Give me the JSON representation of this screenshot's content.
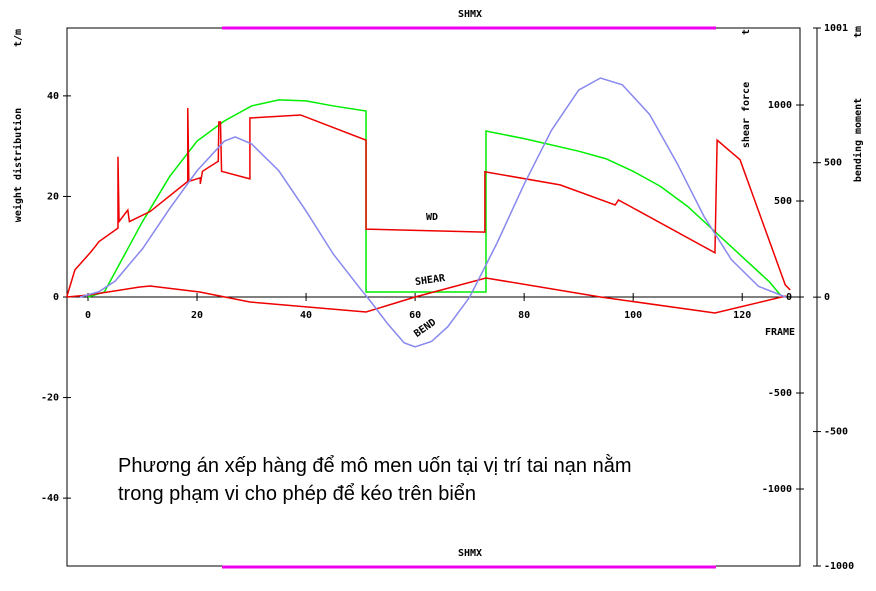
{
  "chart_data": {
    "type": "line",
    "top_label": "SHMX",
    "bottom_label": "SHMX",
    "x_label": "FRAME",
    "y_label": "weight distribution",
    "y_unit": "t/m",
    "y2_label": "shear force",
    "y2_unit": "t",
    "y3_label": "bending moment",
    "y3_unit": "tm",
    "caption": [
      "Phương án xếp hàng để mô men uốn tại vị trí tai nạn nằm",
      "trong phạm vi cho phép để kéo trên biển"
    ],
    "xlim": [
      -3.85,
      130.6
    ],
    "xticks": [
      0,
      20,
      40,
      60,
      80,
      100,
      120
    ],
    "ylim": [
      -53.5,
      53.5
    ],
    "yticks": [
      -40,
      -20,
      0,
      20,
      40
    ],
    "y2lim": [
      -1401,
      1401
    ],
    "y2ticks": [
      -1000,
      -500,
      0,
      500,
      1000
    ],
    "y3lim": [
      -1000,
      1001
    ],
    "y3ticks": [
      -1000,
      -500,
      0,
      500,
      1001
    ],
    "series": [
      {
        "color": "#00ee00",
        "axis": "y",
        "x": [
          0,
          3,
          5,
          10,
          15,
          20,
          25,
          30,
          35,
          40,
          45,
          51,
          51,
          73,
          73,
          80,
          90,
          95,
          100,
          105,
          110,
          115,
          120,
          125,
          127
        ],
        "values": [
          0,
          1,
          5,
          15,
          24,
          31,
          35,
          38,
          39.2,
          39,
          38,
          37,
          1,
          1,
          33,
          31.5,
          29,
          27.5,
          25,
          22,
          18,
          13,
          8,
          3,
          0.4
        ]
      },
      {
        "name": "WD",
        "color": "#ee0000",
        "axis": "y",
        "x": [
          -3.9,
          -2.4,
          0.4,
          1.3,
          2,
          5.5,
          5.5,
          5.7,
          7.3,
          7.6,
          11.4,
          18.3,
          18.3,
          18.5,
          20.6,
          20.6,
          21,
          23.9,
          24,
          24.3,
          24.5,
          29.7,
          29.7,
          39,
          51,
          51,
          72.8,
          72.8,
          86.6,
          96.7,
          97.3,
          115,
          115.4,
          119.6,
          127.9,
          128.8
        ],
        "values": [
          0,
          5.4,
          8.8,
          10,
          11,
          13.7,
          27.9,
          15,
          17.3,
          15,
          17,
          23,
          37.6,
          23,
          23.7,
          22.5,
          25,
          27,
          34.8,
          34.8,
          25,
          23.5,
          35.6,
          36.2,
          31.2,
          13.5,
          12.9,
          24.9,
          22.3,
          18.3,
          19.3,
          8.8,
          31.2,
          27.3,
          2.4,
          1.4
        ]
      },
      {
        "name": "SHEAR",
        "color": "#ee0000",
        "axis": "y2",
        "x": [
          -3.9,
          0,
          9.5,
          11.4,
          20.5,
          29.7,
          51,
          60,
          73,
          94,
          115,
          128
        ],
        "values": [
          0,
          10,
          52,
          57,
          26,
          -26,
          -78,
          0,
          99,
          0,
          -83,
          5
        ]
      },
      {
        "name": "BEND",
        "color": "#8888ee",
        "axis": "y3",
        "x": [
          -1.5,
          2,
          5,
          10,
          15,
          20,
          25,
          27,
          30,
          35,
          40,
          45,
          50,
          52,
          55,
          58,
          60,
          63,
          66,
          70,
          75,
          80,
          85,
          90,
          94,
          98,
          103,
          108,
          113,
          118,
          123,
          128
        ],
        "values": [
          0,
          20,
          60,
          180,
          330,
          470,
          580,
          596,
          570,
          470,
          320,
          160,
          30,
          -20,
          -100,
          -170,
          -185,
          -165,
          -110,
          0,
          200,
          420,
          620,
          770,
          815,
          790,
          680,
          500,
          300,
          140,
          40,
          0
        ]
      }
    ]
  }
}
